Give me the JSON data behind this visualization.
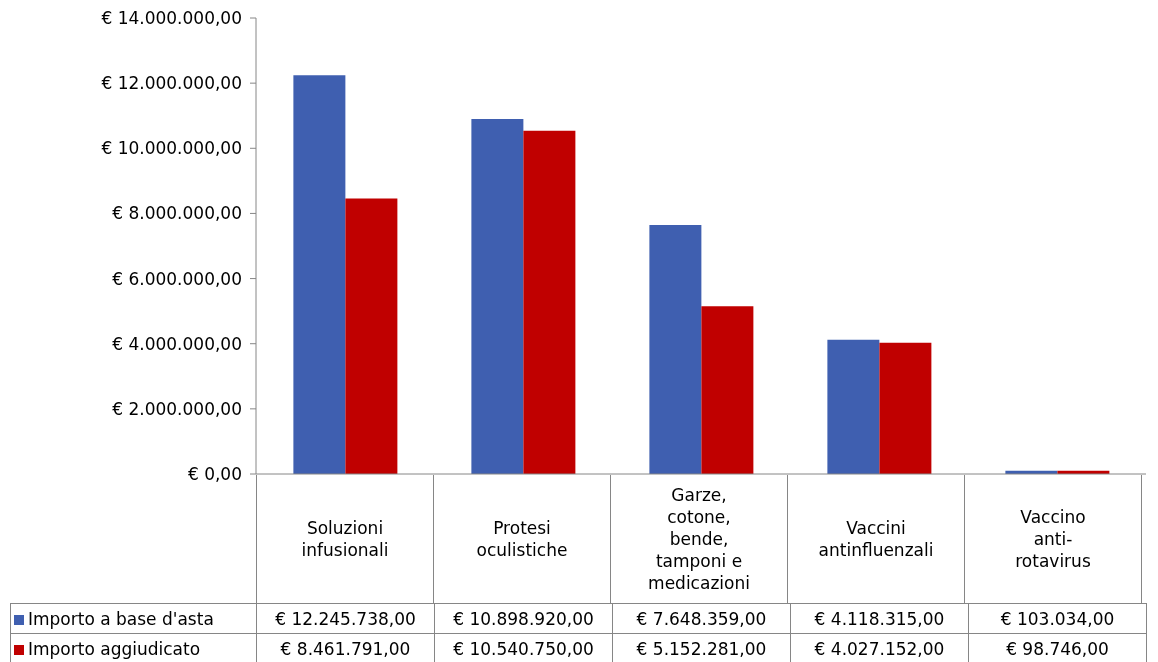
{
  "chart_data": {
    "type": "bar",
    "categories": [
      "Soluzioni infusionali",
      "Protesi oculistiche",
      "Garze, cotone, bende, tamponi e medicazioni",
      "Vaccini antinfluenzali",
      "Vaccino anti-rotavirus"
    ],
    "series": [
      {
        "name": "Importo a base d'asta",
        "color": "#3f5fb0",
        "values": [
          12245738,
          10898920,
          7648359,
          4118315,
          103034
        ],
        "value_labels": [
          "€ 12.245.738,00",
          "€ 10.898.920,00",
          "€ 7.648.359,00",
          "€ 4.118.315,00",
          "€ 103.034,00"
        ]
      },
      {
        "name": "Importo aggiudicato",
        "color": "#c00000",
        "values": [
          8461791,
          10540750,
          5152281,
          4027152,
          98746
        ],
        "value_labels": [
          "€ 8.461.791,00",
          "€ 10.540.750,00",
          "€ 5.152.281,00",
          "€ 4.027.152,00",
          "€ 98.746,00"
        ]
      }
    ],
    "ylim": [
      0,
      14000000
    ],
    "yticks": [
      {
        "value": 0,
        "label": "€ 0,00"
      },
      {
        "value": 2000000,
        "label": "€ 2.000.000,00"
      },
      {
        "value": 4000000,
        "label": "€ 4.000.000,00"
      },
      {
        "value": 6000000,
        "label": "€ 6.000.000,00"
      },
      {
        "value": 8000000,
        "label": "€ 8.000.000,00"
      },
      {
        "value": 10000000,
        "label": "€ 10.000.000,00"
      },
      {
        "value": 12000000,
        "label": "€ 12.000.000,00"
      },
      {
        "value": 14000000,
        "label": "€ 14.000.000,00"
      }
    ],
    "grid": false,
    "legend": "bottom"
  }
}
